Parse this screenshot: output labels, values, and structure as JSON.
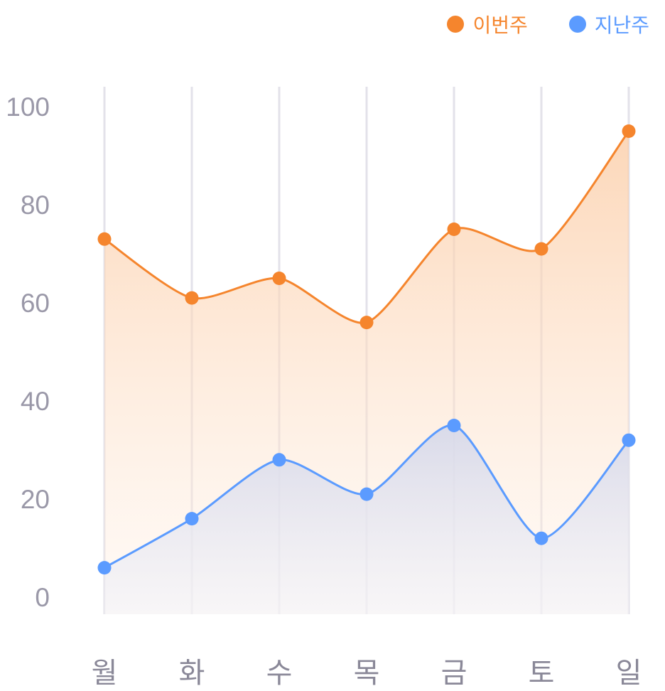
{
  "chart_data": {
    "type": "area",
    "categories": [
      "월",
      "화",
      "수",
      "목",
      "금",
      "토",
      "일"
    ],
    "series": [
      {
        "name": "이번주",
        "color": "#f5852d",
        "values": [
          73,
          61,
          65,
          56,
          75,
          71,
          95
        ]
      },
      {
        "name": "지난주",
        "color": "#5b9bff",
        "values": [
          6,
          16,
          28,
          21,
          35,
          12,
          32
        ]
      }
    ],
    "yticks": [
      "0",
      "20",
      "40",
      "60",
      "80",
      "100"
    ],
    "ylim": [
      0,
      100
    ],
    "grid": "vertical",
    "legend": "top-right",
    "title": "",
    "xlabel": "",
    "ylabel": ""
  }
}
